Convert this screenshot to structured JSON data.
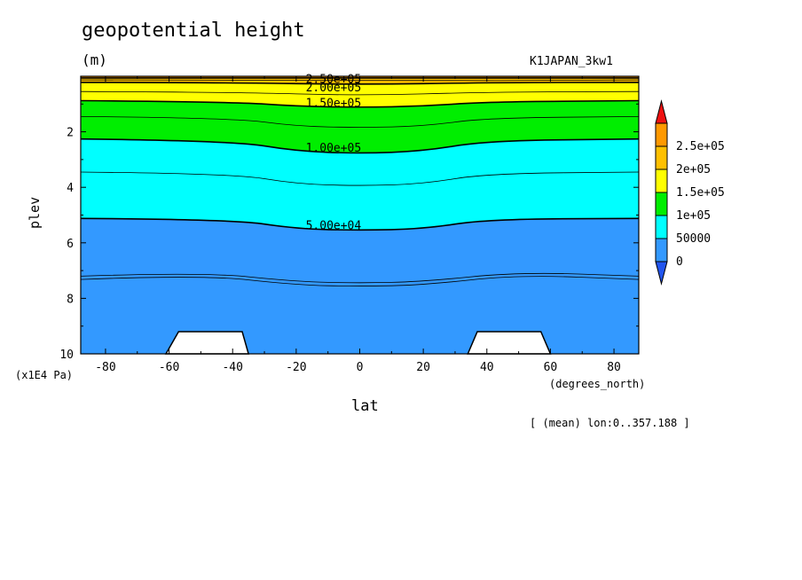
{
  "chart_data": {
    "type": "heatmap",
    "title": "geopotential height",
    "units": "(m)",
    "dataset": "K1JAPAN_3kw1",
    "xlabel": "lat",
    "xunit": "(degrees_north)",
    "ylabel": "plev",
    "yunit": "(x1E4 Pa)",
    "note": "[ (mean) lon:0..357.188 ]",
    "xlim": [
      -87.8,
      87.8
    ],
    "ylim": [
      10,
      0
    ],
    "x_ticks": [
      "-80",
      "-60",
      "-40",
      "-20",
      "0",
      "20",
      "40",
      "60",
      "80"
    ],
    "x_tick_values": [
      -80,
      -60,
      -40,
      -20,
      0,
      20,
      40,
      60,
      80
    ],
    "y_ticks": [
      "2",
      "4",
      "6",
      "8",
      "10"
    ],
    "y_tick_values": [
      2,
      4,
      6,
      8,
      10
    ],
    "levels": [
      0,
      50000,
      100000,
      150000,
      200000,
      250000
    ],
    "colorbar_labels": [
      "0",
      "50000",
      "1e+05",
      "1.5e+05",
      "2e+05",
      "2.5e+05"
    ],
    "colors": [
      "#3399ff",
      "#00ffff",
      "#00ee00",
      "#ffff00",
      "#ffc000",
      "#ff9900"
    ],
    "extend_colors": {
      "low": "#2255ee",
      "high": "#ee1111"
    },
    "fill_contours": [
      {
        "level": 250000,
        "points": [
          [
            -87.8,
            0.06
          ],
          [
            87.8,
            0.06
          ]
        ]
      },
      {
        "level": 200000,
        "points": [
          [
            -87.8,
            0.22
          ],
          [
            -40,
            0.23
          ],
          [
            0,
            0.3
          ],
          [
            40,
            0.23
          ],
          [
            87.8,
            0.22
          ]
        ]
      },
      {
        "level": 150000,
        "points": [
          [
            -87.8,
            0.88
          ],
          [
            -40,
            0.92
          ],
          [
            -20,
            1.08
          ],
          [
            0,
            1.12
          ],
          [
            20,
            1.08
          ],
          [
            40,
            0.92
          ],
          [
            87.8,
            0.88
          ]
        ]
      },
      {
        "level": 100000,
        "points": [
          [
            -87.8,
            2.26
          ],
          [
            -40,
            2.32
          ],
          [
            -20,
            2.7
          ],
          [
            0,
            2.78
          ],
          [
            20,
            2.7
          ],
          [
            40,
            2.32
          ],
          [
            87.8,
            2.26
          ]
        ]
      },
      {
        "level": 50000,
        "points": [
          [
            -87.8,
            5.12
          ],
          [
            -40,
            5.15
          ],
          [
            -20,
            5.5
          ],
          [
            0,
            5.55
          ],
          [
            20,
            5.5
          ],
          [
            40,
            5.15
          ],
          [
            87.8,
            5.12
          ]
        ]
      }
    ],
    "extra_contours": [
      [
        [
          -87.8,
          0.13
        ],
        [
          0,
          0.18
        ],
        [
          87.8,
          0.13
        ]
      ],
      [
        [
          -87.8,
          0.55
        ],
        [
          -40,
          0.57
        ],
        [
          0,
          0.7
        ],
        [
          40,
          0.57
        ],
        [
          87.8,
          0.55
        ]
      ],
      [
        [
          -87.8,
          1.45
        ],
        [
          -40,
          1.5
        ],
        [
          -20,
          1.8
        ],
        [
          0,
          1.85
        ],
        [
          20,
          1.8
        ],
        [
          40,
          1.5
        ],
        [
          87.8,
          1.45
        ]
      ],
      [
        [
          -87.8,
          3.45
        ],
        [
          -40,
          3.5
        ],
        [
          -20,
          3.88
        ],
        [
          0,
          3.95
        ],
        [
          20,
          3.88
        ],
        [
          40,
          3.5
        ],
        [
          87.8,
          3.45
        ]
      ],
      [
        [
          -87.8,
          7.2
        ],
        [
          -50,
          7.05
        ],
        [
          -20,
          7.4
        ],
        [
          0,
          7.45
        ],
        [
          20,
          7.4
        ],
        [
          50,
          7.05
        ],
        [
          87.8,
          7.2
        ]
      ],
      [
        [
          -87.8,
          7.32
        ],
        [
          -50,
          7.15
        ],
        [
          -20,
          7.52
        ],
        [
          0,
          7.57
        ],
        [
          20,
          7.52
        ],
        [
          50,
          7.15
        ],
        [
          87.8,
          7.32
        ]
      ]
    ],
    "contour_labels": [
      {
        "text": "2.50e+05",
        "x": -17,
        "y": 0.08
      },
      {
        "text": "2.00e+05",
        "x": -17,
        "y": 0.38
      },
      {
        "text": "1.50e+05",
        "x": -17,
        "y": 0.95
      },
      {
        "text": "1.00e+05",
        "x": -17,
        "y": 2.55
      },
      {
        "text": "5.00e+04",
        "x": -17,
        "y": 5.35
      }
    ],
    "masked_regions": [
      [
        [
          -61,
          10
        ],
        [
          -57,
          9.2
        ],
        [
          -37,
          9.2
        ],
        [
          -35,
          10
        ]
      ],
      [
        [
          34,
          10
        ],
        [
          37,
          9.2
        ],
        [
          57,
          9.2
        ],
        [
          60,
          10
        ]
      ]
    ]
  }
}
